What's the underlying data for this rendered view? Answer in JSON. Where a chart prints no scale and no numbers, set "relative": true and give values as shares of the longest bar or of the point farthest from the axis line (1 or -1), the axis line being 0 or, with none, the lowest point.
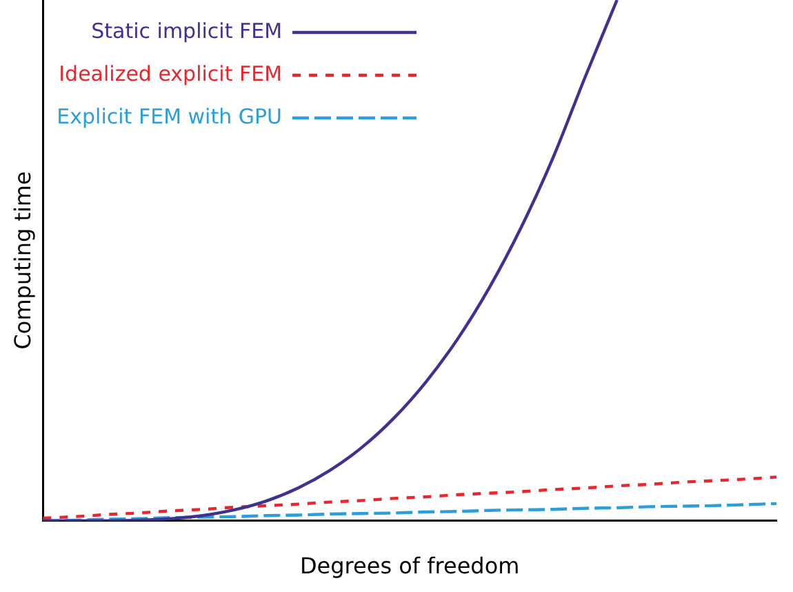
{
  "chart_data": {
    "type": "line",
    "relative": true,
    "xlabel": "Degrees of freedom",
    "ylabel": "Computing time",
    "legend": "top left",
    "grid": false,
    "marker": "none",
    "categories": [
      null,
      null,
      null,
      null,
      null,
      null,
      null,
      null,
      null,
      null,
      null,
      null,
      null,
      null,
      null,
      null,
      null,
      null,
      null,
      null,
      null,
      null,
      null,
      null
    ],
    "series": [
      {
        "name": "Static implicit FEM",
        "color": "#3d3192",
        "line_style": "solid",
        "values": [
          0,
          0,
          0,
          0.001,
          0.004,
          0.01,
          0.021,
          0.038,
          0.063,
          0.097,
          0.141,
          0.197,
          0.266,
          0.349,
          0.448,
          0.564,
          0.698,
          0.852,
          1,
          null,
          null,
          null,
          null,
          null
        ]
      },
      {
        "name": "Idealized explicit FEM",
        "color": "#e8262b",
        "line_style": "dotted",
        "values": [
          0.005,
          0.008,
          0.012,
          0.015,
          0.019,
          0.022,
          0.026,
          0.029,
          0.032,
          0.036,
          0.039,
          0.043,
          0.046,
          0.05,
          0.053,
          0.056,
          0.06,
          0.063,
          0.067,
          0.07,
          0.074,
          0.077,
          0.08,
          0.084
        ]
      },
      {
        "name": "Explicit FEM with GPU",
        "color": "#2b9fd9",
        "line_style": "dashed",
        "values": [
          0,
          0.001,
          0.003,
          0.004,
          0.006,
          0.007,
          0.008,
          0.01,
          0.011,
          0.013,
          0.014,
          0.015,
          0.017,
          0.018,
          0.02,
          0.021,
          0.022,
          0.024,
          0.025,
          0.027,
          0.028,
          0.029,
          0.031,
          0.033
        ]
      }
    ]
  }
}
